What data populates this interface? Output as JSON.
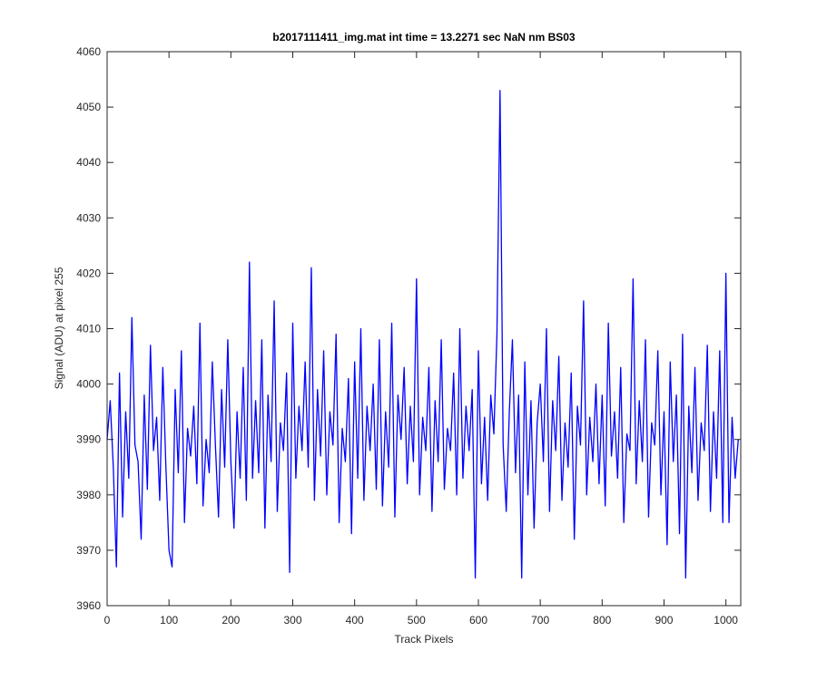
{
  "chart_data": {
    "type": "line",
    "title": "b2017111411_img.mat int time = 13.2271 sec  NaN nm BS03",
    "x_label": "Track Pixels",
    "y_label": "Signal (ADU) at pixel 255",
    "xlim": [
      0,
      1024
    ],
    "ylim": [
      3960,
      4060
    ],
    "xticks": [
      0,
      100,
      200,
      300,
      400,
      500,
      600,
      700,
      800,
      900,
      1000
    ],
    "yticks": [
      3960,
      3970,
      3980,
      3990,
      4000,
      4010,
      4020,
      4030,
      4040,
      4050,
      4060
    ],
    "grid": false,
    "x": [
      0,
      5,
      10,
      15,
      20,
      25,
      30,
      35,
      40,
      45,
      50,
      55,
      60,
      65,
      70,
      75,
      80,
      85,
      90,
      95,
      100,
      105,
      110,
      115,
      120,
      125,
      130,
      135,
      140,
      145,
      150,
      155,
      160,
      165,
      170,
      175,
      180,
      185,
      190,
      195,
      200,
      205,
      210,
      215,
      220,
      225,
      230,
      235,
      240,
      245,
      250,
      255,
      260,
      265,
      270,
      275,
      280,
      285,
      290,
      295,
      300,
      305,
      310,
      315,
      320,
      325,
      330,
      335,
      340,
      345,
      350,
      355,
      360,
      365,
      370,
      375,
      380,
      385,
      390,
      395,
      400,
      405,
      410,
      415,
      420,
      425,
      430,
      435,
      440,
      445,
      450,
      455,
      460,
      465,
      470,
      475,
      480,
      485,
      490,
      495,
      500,
      505,
      510,
      515,
      520,
      525,
      530,
      535,
      540,
      545,
      550,
      555,
      560,
      565,
      570,
      575,
      580,
      585,
      590,
      595,
      600,
      605,
      610,
      615,
      620,
      625,
      630,
      635,
      640,
      645,
      650,
      655,
      660,
      665,
      670,
      675,
      680,
      685,
      690,
      695,
      700,
      705,
      710,
      715,
      720,
      725,
      730,
      735,
      740,
      745,
      750,
      755,
      760,
      765,
      770,
      775,
      780,
      785,
      790,
      795,
      800,
      805,
      810,
      815,
      820,
      825,
      830,
      835,
      840,
      845,
      850,
      855,
      860,
      865,
      870,
      875,
      880,
      885,
      890,
      895,
      900,
      905,
      910,
      915,
      920,
      925,
      930,
      935,
      940,
      945,
      950,
      955,
      960,
      965,
      970,
      975,
      980,
      985,
      990,
      995,
      1000,
      1005,
      1010,
      1015,
      1020
    ],
    "series": [
      {
        "color": "#0000ff",
        "values": [
          3990,
          3997,
          3985,
          3967,
          4002,
          3976,
          3995,
          3983,
          4012,
          3989,
          3986,
          3972,
          3998,
          3981,
          4007,
          3988,
          3994,
          3979,
          4003,
          3985,
          3970,
          3967,
          3999,
          3984,
          4006,
          3975,
          3992,
          3987,
          3996,
          3982,
          4011,
          3978,
          3990,
          3984,
          4004,
          3989,
          3976,
          3999,
          3985,
          4008,
          3986,
          3974,
          3995,
          3983,
          4003,
          3979,
          4022,
          3983,
          3997,
          3984,
          4008,
          3974,
          3998,
          3986,
          4015,
          3977,
          3993,
          3988,
          4002,
          3966,
          4011,
          3983,
          3996,
          3988,
          4004,
          3985,
          4021,
          3979,
          3999,
          3987,
          4006,
          3980,
          3995,
          3989,
          4009,
          3975,
          3992,
          3986,
          4001,
          3973,
          4004,
          3983,
          4010,
          3979,
          3996,
          3988,
          4000,
          3981,
          4008,
          3978,
          3995,
          3985,
          4011,
          3976,
          3998,
          3990,
          4003,
          3982,
          3996,
          3986,
          4019,
          3980,
          3994,
          3988,
          4003,
          3977,
          3997,
          3986,
          4008,
          3981,
          3992,
          3988,
          4002,
          3980,
          4010,
          3983,
          3996,
          3988,
          3999,
          3965,
          4006,
          3982,
          3994,
          3979,
          3998,
          3991,
          4009,
          4053,
          3989,
          3977,
          3995,
          4008,
          3984,
          3998,
          3965,
          4004,
          3980,
          3997,
          3974,
          3993,
          4000,
          3986,
          4010,
          3977,
          3997,
          3988,
          4005,
          3979,
          3993,
          3985,
          4002,
          3972,
          3996,
          3989,
          4015,
          3980,
          3994,
          3986,
          4000,
          3982,
          3998,
          3978,
          4011,
          3987,
          3995,
          3983,
          4003,
          3975,
          3991,
          3988,
          4019,
          3982,
          3997,
          3986,
          4008,
          3976,
          3993,
          3989,
          4006,
          3980,
          3995,
          3971,
          4004,
          3986,
          3998,
          3973,
          4009,
          3965,
          3996,
          3984,
          4003,
          3979,
          3993,
          3988,
          4007,
          3977,
          3995,
          3983,
          4006,
          3975,
          4020,
          3975,
          3994,
          3983,
          3990
        ]
      }
    ]
  }
}
